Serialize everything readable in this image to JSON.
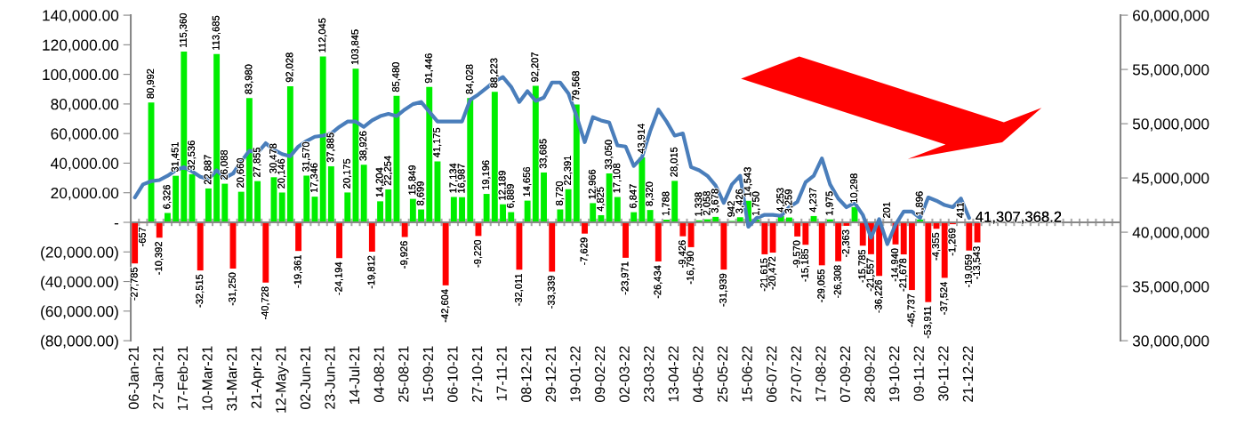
{
  "chart_data": {
    "type": "bar",
    "categories": [
      "06-Jan-21",
      null,
      null,
      "27-Jan-21",
      null,
      null,
      "17-Feb-21",
      null,
      null,
      "10-Mar-21",
      null,
      null,
      "31-Mar-21",
      null,
      null,
      "21-Apr-21",
      null,
      null,
      "12-May-21",
      null,
      null,
      "02-Jun-21",
      null,
      null,
      "23-Jun-21",
      null,
      null,
      "14-Jul-21",
      null,
      null,
      "04-08-21",
      null,
      null,
      "25-08-21",
      null,
      null,
      "15-09-21",
      null,
      null,
      "06-10-21",
      null,
      null,
      "27-10-21",
      null,
      null,
      "17-11-21",
      null,
      null,
      "08-12-21",
      null,
      null,
      "29-12-21",
      null,
      null,
      "19-01-22",
      null,
      null,
      "09-02-22",
      null,
      null,
      "02-03-22",
      null,
      null,
      "23-03-22",
      null,
      null,
      "13-04-22",
      null,
      null,
      "04-05-22",
      null,
      null,
      "25-05-22",
      null,
      null,
      "15-06-22",
      null,
      null,
      "06-07-22",
      null,
      null,
      "27-07-22",
      null,
      null,
      "17-08-22",
      null,
      null,
      "07-09-22",
      null,
      null,
      "28-09-22",
      null,
      null,
      "19-10-22",
      null,
      null,
      "09-11-22",
      null,
      null,
      "30-11-22",
      null,
      null,
      "21-12-22",
      null,
      null,
      null,
      null,
      null,
      null,
      null,
      null,
      null,
      null,
      null,
      null,
      null,
      null,
      null,
      null,
      null,
      null
    ],
    "series": [
      {
        "values": [
          -27785,
          -657,
          80992,
          -10392,
          6326,
          31451,
          115360,
          32536,
          -32515,
          22887,
          113685,
          26088,
          -31250,
          20660,
          83980,
          27855,
          -40728,
          30478,
          20146,
          92028,
          -19361,
          31570,
          17346,
          112045,
          37885,
          -24194,
          20175,
          103845,
          38926,
          -19812,
          14204,
          22254,
          85480,
          -9926,
          15849,
          8699,
          91446,
          41175,
          -42604,
          17134,
          16987,
          84028,
          -9220,
          19196,
          88223,
          12189,
          6889,
          -32011,
          14656,
          92207,
          33685,
          -33339,
          8720,
          22391,
          79568,
          -7629,
          12966,
          4825,
          33050,
          17108,
          -23971,
          6847,
          43914,
          8320,
          -26434,
          1788,
          28015,
          -9426,
          -16790,
          1338,
          2058,
          3678,
          -31939,
          942,
          3426,
          14543,
          1750,
          -21615,
          -20472,
          4253,
          3259,
          -9570,
          -15185,
          4237,
          -29055,
          1975,
          -26308,
          -2363,
          10298,
          -15785,
          -21557,
          -36226,
          201,
          -14940,
          -21678,
          -45737,
          1896,
          -53911,
          -4355,
          -37524,
          -1269,
          411,
          -19059,
          -13543,
          null,
          null,
          null,
          null,
          null,
          null,
          null,
          null,
          null,
          null,
          null,
          null,
          null,
          null,
          null,
          null,
          null
        ],
        "colors": [
          "#ff0000",
          "#ff0000",
          "#00ee00",
          "#ff0000",
          "#00ee00",
          "#00ee00",
          "#00ee00",
          "#00ee00",
          "#ff0000",
          "#00ee00",
          "#00ee00",
          "#00ee00",
          "#ff0000",
          "#00ee00",
          "#00ee00",
          "#00ee00",
          "#ff0000",
          "#00ee00",
          "#00ee00",
          "#00ee00",
          "#ff0000",
          "#00ee00",
          "#00ee00",
          "#00ee00",
          "#00ee00",
          "#ff0000",
          "#00ee00",
          "#00ee00",
          "#00ee00",
          "#ff0000",
          "#00ee00",
          "#00ee00",
          "#00ee00",
          "#ff0000",
          "#00ee00",
          "#00ee00",
          "#00ee00",
          "#00ee00",
          "#ff0000",
          "#00ee00",
          "#00ee00",
          "#00ee00",
          "#ff0000",
          "#00ee00",
          "#00ee00",
          "#00ee00",
          "#00ee00",
          "#ff0000",
          "#00ee00",
          "#00ee00",
          "#00ee00",
          "#ff0000",
          "#00ee00",
          "#00ee00",
          "#00ee00",
          "#ff0000",
          "#00ee00",
          "#00ee00",
          "#00ee00",
          "#00ee00",
          "#ff0000",
          "#00ee00",
          "#00ee00",
          "#00ee00",
          "#ff0000",
          "#00ee00",
          "#00ee00",
          "#ff0000",
          "#ff0000",
          "#00ee00",
          "#00ee00",
          "#00ee00",
          "#ff0000",
          "#00ee00",
          "#00ee00",
          "#00ee00",
          "#00ee00",
          "#ff0000",
          "#ff0000",
          "#00ee00",
          "#00ee00",
          "#ff0000",
          "#ff0000",
          "#00ee00",
          "#ff0000",
          "#00ee00",
          "#ff0000",
          "#ff0000",
          "#00ee00",
          "#ff0000",
          "#ff0000",
          "#ff0000",
          "#00ee00",
          "#ff0000",
          "#ff0000",
          "#ff0000",
          "#00ee00",
          "#ff0000",
          "#ff0000",
          "#ff0000",
          "#ff0000",
          "#00ee00",
          "#ff0000",
          "#ff0000",
          null,
          null,
          null,
          null,
          null,
          null,
          null,
          null,
          null,
          null,
          null,
          null,
          null,
          null,
          null,
          null,
          null
        ],
        "value_labels": [
          "-27,785",
          "-657",
          "80,992",
          "-10,392",
          "6,326",
          "31,451",
          "115,360",
          "32,536",
          "-32,515",
          "22,887",
          "113,685",
          "26,088",
          "-31,250",
          "20,660",
          "83,980",
          "27,855",
          "-40,728",
          "30,478",
          "20,146",
          "92,028",
          "-19,361",
          "31,570",
          "17,346",
          "112,045",
          "37,885",
          "-24,194",
          "20,175",
          "103,845",
          "38,926",
          "-19,812",
          "14,204",
          "22,254",
          "85,480",
          "-9,926",
          "15,849",
          "8,699",
          "91,446",
          "41,175",
          "-42,604",
          "17,134",
          "16,987",
          "84,028",
          "-9,220",
          "19,196",
          "88,223",
          "12,189",
          "6,889",
          "-32,011",
          "14,656",
          "92,207",
          "33,685",
          "-33,339",
          "8,720",
          "22,391",
          "79,568",
          "-7,629",
          "12,966",
          "4,825",
          "33,050",
          "17,108",
          "-23,971",
          "6,847",
          "43,914",
          "8,320",
          "-26,434",
          "1,788",
          "28,015",
          "-9,426",
          "-16,790",
          "1,338",
          "2,058",
          "3,678",
          "-31,939",
          "942",
          "3,426",
          "14,543",
          "1,750",
          "-21,615",
          "-20,472",
          "4,253",
          "3,259",
          "-9,570",
          "-15,185",
          "4,237",
          "-29,055",
          "1,975",
          "-26,308",
          "-2,363",
          "10,298",
          "-15,785",
          "-21,557",
          "-36,226",
          "201",
          "-14,940",
          "-21,678",
          "-45,737",
          "1,896",
          "-53,911",
          "-4,355",
          "-37,524",
          "-1,269",
          "411",
          "-19,059",
          "-13,543",
          null,
          null,
          null,
          null,
          null,
          null,
          null,
          null,
          null,
          null,
          null,
          null,
          null,
          null,
          null,
          null,
          null
        ]
      },
      {
        "type": "line",
        "axis": "y2",
        "color": "#4a7ebb",
        "values": [
          43200000,
          44400000,
          44700000,
          44800000,
          45200000,
          45700000,
          46000000,
          45600000,
          45100000,
          44900000,
          45700000,
          45000000,
          45400000,
          46500000,
          47500000,
          47300000,
          48200000,
          47600000,
          47200000,
          47000000,
          47900000,
          48400000,
          48800000,
          48900000,
          49100000,
          49700000,
          50200000,
          50200000,
          49700000,
          50300000,
          50700000,
          50900000,
          50700000,
          51300000,
          51800000,
          52000000,
          51100000,
          50200000,
          50200000,
          50200000,
          50200000,
          52200000,
          52700000,
          53300000,
          53900000,
          54300000,
          53400000,
          52000000,
          53000000,
          52100000,
          52400000,
          53800000,
          53800000,
          52800000,
          50700000,
          48300000,
          50600000,
          50300000,
          50100000,
          48000000,
          47900000,
          46100000,
          46900000,
          49300000,
          51300000,
          50200000,
          48900000,
          49100000,
          46000000,
          45700000,
          45200000,
          44300000,
          42700000,
          44400000,
          45200000,
          40500000,
          41300000,
          41600000,
          41600000,
          41500000,
          42300000,
          42800000,
          44600000,
          45200000,
          46800000,
          44400000,
          43100000,
          42300000,
          42700000,
          41600000,
          39500000,
          41200000,
          38900000,
          40700000,
          41900000,
          41900000,
          41300000,
          43200000,
          42900000,
          42500000,
          42300000,
          43100000,
          41307368.2,
          null,
          null,
          null,
          null,
          null,
          null,
          null,
          null,
          null,
          null,
          null,
          null,
          null,
          null,
          null,
          null,
          null,
          null
        ],
        "value_labels": [
          null,
          null,
          null,
          null,
          null,
          null,
          null,
          null,
          null,
          null,
          null,
          null,
          null,
          null,
          null,
          null,
          null,
          null,
          null,
          null,
          null,
          null,
          null,
          null,
          null,
          null,
          null,
          null,
          null,
          null,
          null,
          null,
          null,
          null,
          null,
          null,
          null,
          null,
          null,
          null,
          null,
          null,
          null,
          null,
          null,
          null,
          null,
          null,
          null,
          null,
          null,
          null,
          null,
          null,
          null,
          null,
          null,
          null,
          null,
          null,
          null,
          null,
          null,
          null,
          null,
          null,
          null,
          null,
          null,
          null,
          null,
          null,
          null,
          null,
          null,
          null,
          null,
          null,
          null,
          null,
          null,
          null,
          null,
          null,
          null,
          null,
          null,
          null,
          null,
          null,
          null,
          null,
          null,
          null,
          null,
          null,
          null,
          null,
          null,
          null,
          null,
          null,
          "41,307,368.2",
          null,
          null,
          null,
          null,
          null,
          null,
          null,
          null,
          null,
          null,
          null,
          null,
          null,
          null,
          null,
          null,
          null,
          null
        ]
      }
    ],
    "ylim": [
      -80000,
      140000
    ],
    "yticks": [
      {
        "value": -80000,
        "label": "(80,000.00)"
      },
      {
        "value": -60000,
        "label": "(60,000.00)"
      },
      {
        "value": -40000,
        "label": "(40,000.00)"
      },
      {
        "value": -20000,
        "label": "(20,000.00)"
      },
      {
        "value": 0,
        "label": "-"
      },
      {
        "value": 20000,
        "label": "20,000.00"
      },
      {
        "value": 40000,
        "label": "40,000.00"
      },
      {
        "value": 60000,
        "label": "60,000.00"
      },
      {
        "value": 80000,
        "label": "80,000.00"
      },
      {
        "value": 100000,
        "label": "100,000.00"
      },
      {
        "value": 120000,
        "label": "120,000.00"
      },
      {
        "value": 140000,
        "label": "140,000.00"
      }
    ],
    "y2lim": [
      30000000,
      60000000
    ],
    "y2ticks": [
      {
        "value": 30000000,
        "label": "30,000,000"
      },
      {
        "value": 35000000,
        "label": "35,000,000"
      },
      {
        "value": 40000000,
        "label": "40,000,000"
      },
      {
        "value": 45000000,
        "label": "45,000,000"
      },
      {
        "value": 50000000,
        "label": "50,000,000"
      },
      {
        "value": 55000000,
        "label": "55,000,000"
      },
      {
        "value": 60000000,
        "label": "60,000,000"
      }
    ],
    "orientation": "vertical",
    "legend": false
  }
}
